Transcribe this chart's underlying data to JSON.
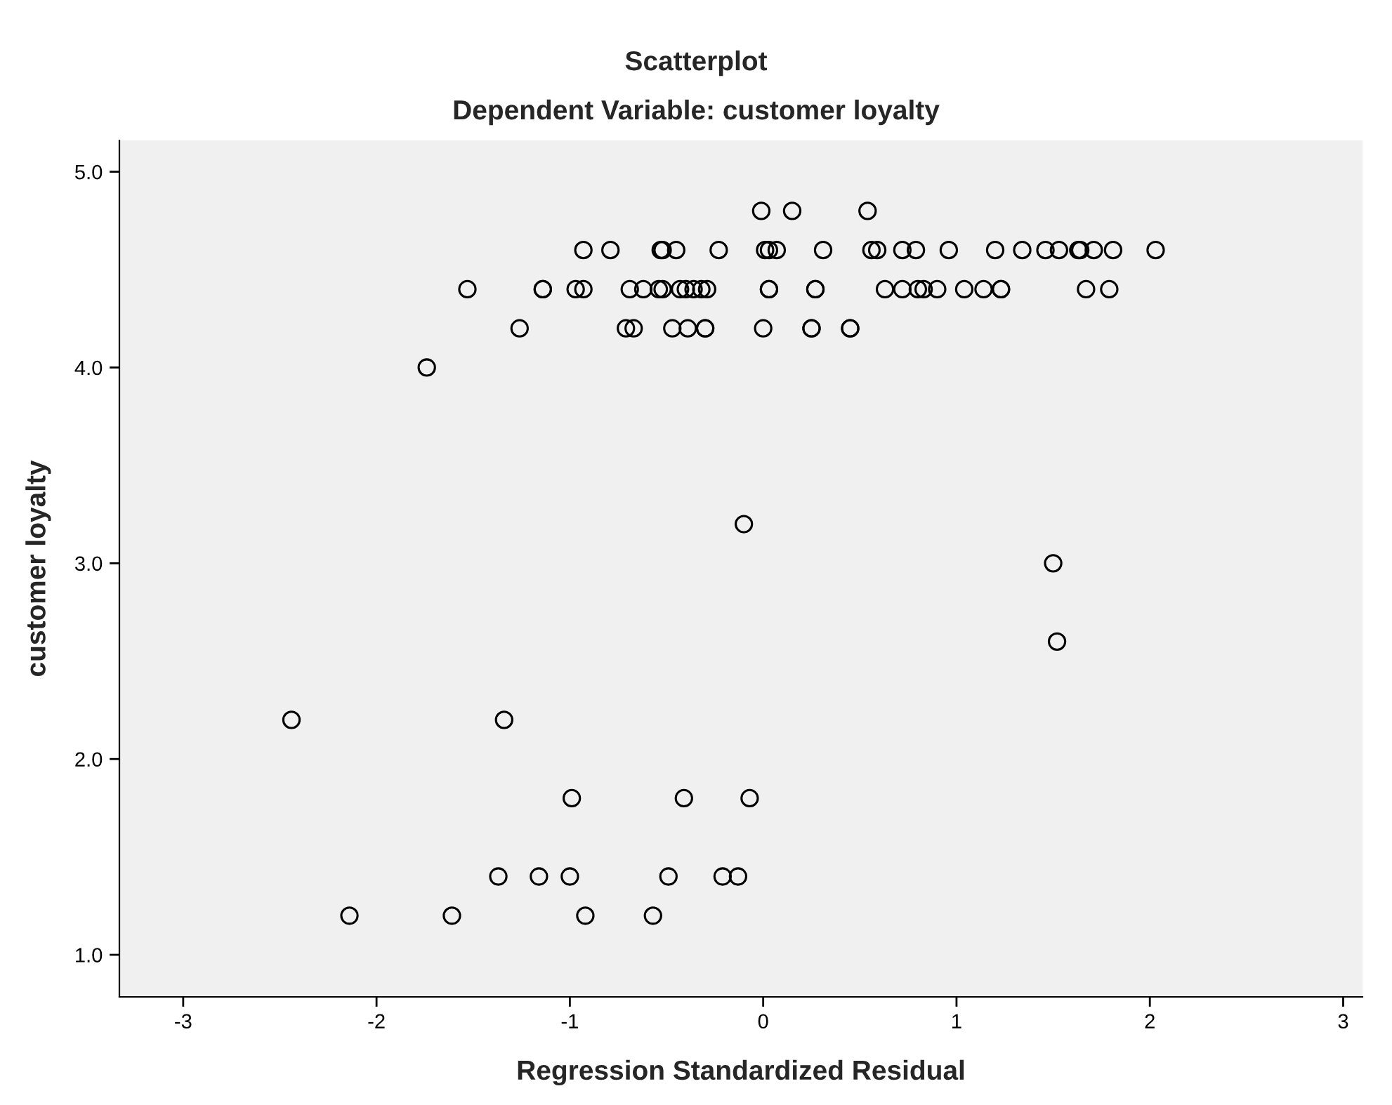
{
  "chart_data": {
    "type": "scatter",
    "title": "Scatterplot",
    "subtitle": "Dependent Variable: customer loyalty",
    "xlabel": "Regression Standardized Residual",
    "ylabel": "customer loyalty",
    "series": [
      {
        "color": "#000000",
        "x": [
          -0.01,
          0.15,
          0.54,
          -0.93,
          -0.79,
          -0.53,
          -0.52,
          -0.45,
          -0.23,
          0.01,
          0.03,
          0.07,
          0.31,
          0.56,
          0.59,
          0.72,
          0.79,
          0.96,
          1.2,
          1.34,
          1.46,
          1.53,
          1.63,
          1.64,
          1.71,
          1.81,
          2.03,
          -1.53,
          -1.14,
          -1.14,
          -0.97,
          -0.93,
          -0.69,
          -0.62,
          -0.54,
          -0.52,
          -0.43,
          -0.4,
          -0.36,
          -0.32,
          -0.29,
          0.03,
          0.03,
          0.27,
          0.27,
          0.63,
          0.72,
          0.8,
          0.83,
          0.9,
          1.04,
          1.14,
          1.23,
          1.23,
          1.67,
          1.79,
          -1.26,
          -0.71,
          -0.67,
          -0.47,
          -0.39,
          -0.3,
          -0.3,
          0.0,
          0.25,
          0.25,
          0.45,
          0.45,
          -1.74,
          -0.1,
          1.5,
          1.52,
          -2.44,
          -1.34,
          -0.99,
          -0.41,
          -0.07,
          -1.37,
          -1.16,
          -1.0,
          -0.49,
          -0.21,
          -0.13,
          -2.14,
          -1.61,
          -0.92,
          -0.57
        ],
        "values": [
          4.8,
          4.8,
          4.8,
          4.6,
          4.6,
          4.6,
          4.6,
          4.6,
          4.6,
          4.6,
          4.6,
          4.6,
          4.6,
          4.6,
          4.6,
          4.6,
          4.6,
          4.6,
          4.6,
          4.6,
          4.6,
          4.6,
          4.6,
          4.6,
          4.6,
          4.6,
          4.6,
          4.4,
          4.4,
          4.4,
          4.4,
          4.4,
          4.4,
          4.4,
          4.4,
          4.4,
          4.4,
          4.4,
          4.4,
          4.4,
          4.4,
          4.4,
          4.4,
          4.4,
          4.4,
          4.4,
          4.4,
          4.4,
          4.4,
          4.4,
          4.4,
          4.4,
          4.4,
          4.4,
          4.4,
          4.4,
          4.2,
          4.2,
          4.2,
          4.2,
          4.2,
          4.2,
          4.2,
          4.2,
          4.2,
          4.2,
          4.2,
          4.2,
          4.0,
          3.2,
          3.0,
          2.6,
          2.2,
          2.2,
          1.8,
          1.8,
          1.8,
          1.4,
          1.4,
          1.4,
          1.4,
          1.4,
          1.4,
          1.2,
          1.2,
          1.2,
          1.2
        ]
      }
    ],
    "marker": "circle",
    "grid": false,
    "xlim": [
      -3.33,
      3.1
    ],
    "xticks": [
      -3,
      -2,
      -1,
      0,
      1,
      2,
      3
    ],
    "ylim": [
      0.785,
      5.16
    ],
    "yticks": [
      {
        "value": 1.0,
        "label": "1.0"
      },
      {
        "value": 2.0,
        "label": "2.0"
      },
      {
        "value": 3.0,
        "label": "3.0"
      },
      {
        "value": 4.0,
        "label": "4.0"
      },
      {
        "value": 5.0,
        "label": "5.0"
      }
    ]
  }
}
